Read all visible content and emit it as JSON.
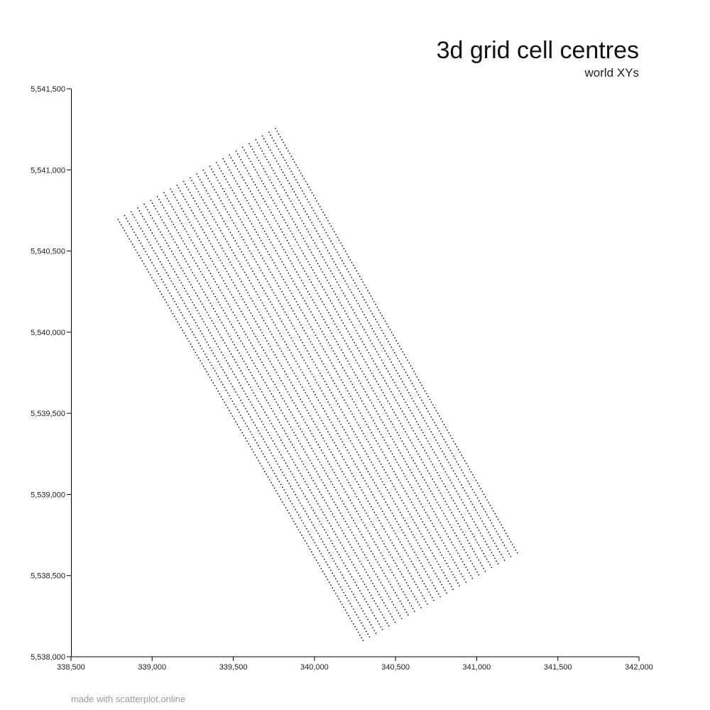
{
  "header": {
    "title": "3d grid cell centres",
    "subtitle": "world XYs"
  },
  "footer": {
    "credit": "made with scatterplot.online"
  },
  "chart_data": {
    "type": "scatter",
    "title": "3d grid cell centres",
    "subtitle": "world XYs",
    "xlabel": "",
    "ylabel": "",
    "xlim": [
      338500,
      342000
    ],
    "ylim": [
      5538000,
      5541500
    ],
    "x_ticks": [
      338500,
      339000,
      339500,
      340000,
      340500,
      341000,
      341500,
      342000
    ],
    "y_ticks": [
      5538000,
      5538500,
      5539000,
      5539500,
      5540000,
      5540500,
      5541000,
      5541500
    ],
    "x_tick_labels": [
      "338,500",
      "339,000",
      "339,500",
      "340,000",
      "340,500",
      "341,000",
      "341,500",
      "342,000"
    ],
    "y_tick_labels": [
      "5,538,000",
      "5,538,500",
      "5,539,000",
      "5,539,500",
      "5,540,000",
      "5,540,500",
      "5,541,000",
      "5,541,500"
    ],
    "grid": false,
    "marker_color": "#000000",
    "grid_geometry": {
      "corner_top_left": [
        338790,
        5540695
      ],
      "corner_top_right": [
        339760,
        5541255
      ],
      "corner_bottom_left": [
        340300,
        5538100
      ],
      "corner_bottom_right": [
        341250,
        5538640
      ],
      "columns": 25,
      "points_per_column": 153
    }
  }
}
